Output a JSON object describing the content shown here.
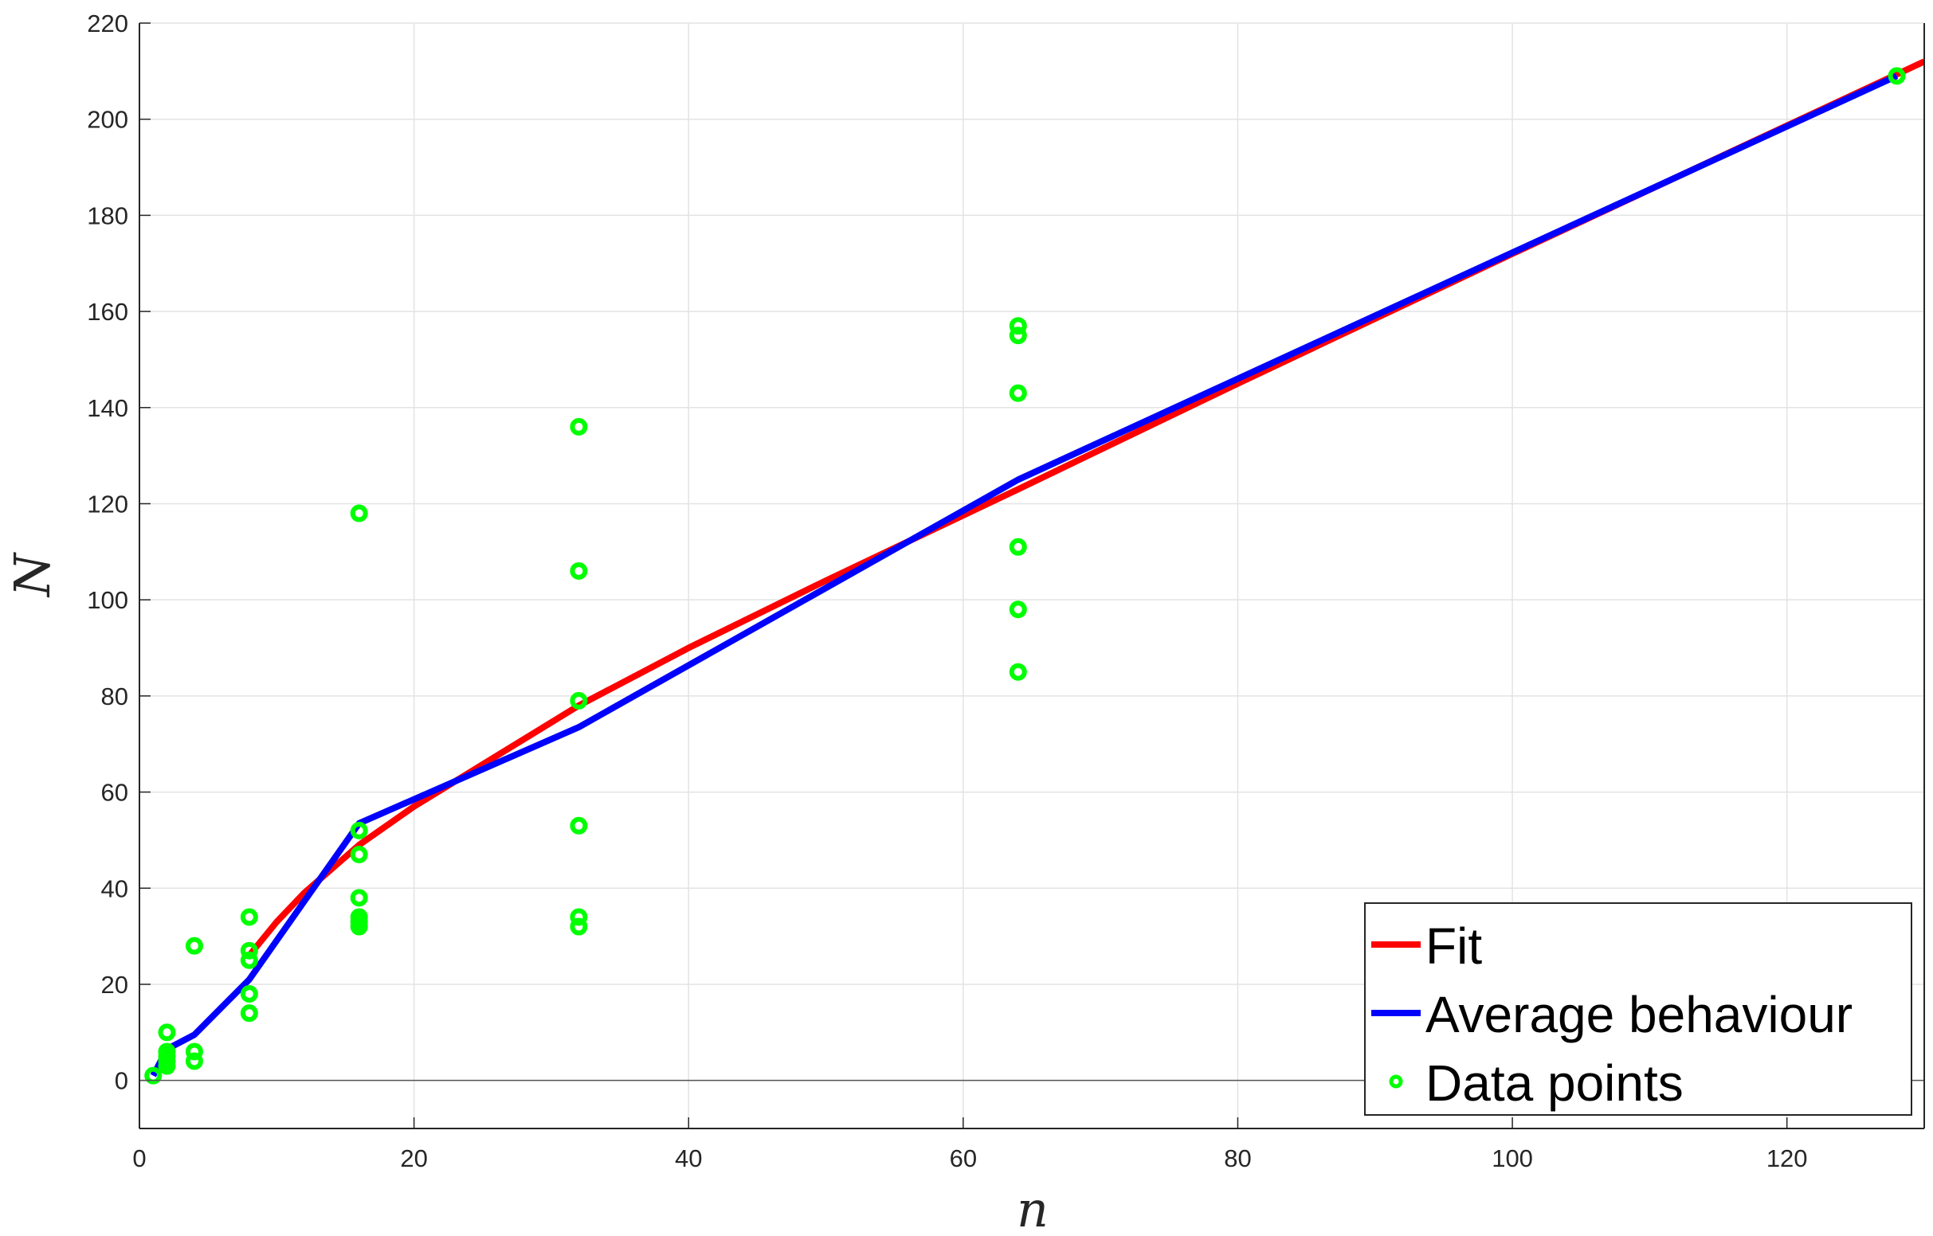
{
  "chart_data": {
    "type": "line",
    "title": "",
    "xlabel": "n",
    "ylabel": "N",
    "xlim": [
      0,
      130
    ],
    "ylim": [
      -10,
      220
    ],
    "xticks": [
      0,
      20,
      40,
      60,
      80,
      100,
      120
    ],
    "yticks": [
      0,
      20,
      40,
      60,
      80,
      100,
      120,
      140,
      160,
      180,
      200,
      220
    ],
    "grid": true,
    "legend_placement": "bottom-right",
    "series": [
      {
        "name": "Fit",
        "kind": "line",
        "color": "#ff0000",
        "x": [
          8,
          10,
          12,
          14,
          16,
          20,
          24,
          32,
          40,
          50,
          64,
          80,
          100,
          115,
          130
        ],
        "y": [
          26,
          33,
          39,
          44,
          49,
          57,
          64,
          78,
          90,
          104,
          123,
          145,
          172,
          192,
          212
        ]
      },
      {
        "name": "Average behaviour",
        "kind": "line",
        "color": "#0000ff",
        "x": [
          1,
          2,
          4,
          8,
          16,
          32,
          64,
          128
        ],
        "y": [
          1,
          6.5,
          9.5,
          21,
          53.5,
          73.5,
          125,
          209
        ]
      },
      {
        "name": "Data points",
        "kind": "scatter",
        "color": "#00ff00",
        "x": [
          1,
          2,
          2,
          2,
          2,
          2,
          4,
          4,
          4,
          8,
          8,
          8,
          8,
          8,
          16,
          16,
          16,
          16,
          16,
          16,
          16,
          32,
          32,
          32,
          32,
          32,
          32,
          64,
          64,
          64,
          64,
          64,
          64,
          128
        ],
        "y": [
          1,
          10,
          6,
          5,
          4,
          3,
          28,
          6,
          4,
          34,
          27,
          25,
          18,
          14,
          118,
          52,
          47,
          38,
          34,
          33,
          32,
          136,
          106,
          79,
          53,
          34,
          32,
          157,
          155,
          143,
          111,
          98,
          85,
          209
        ]
      }
    ]
  }
}
